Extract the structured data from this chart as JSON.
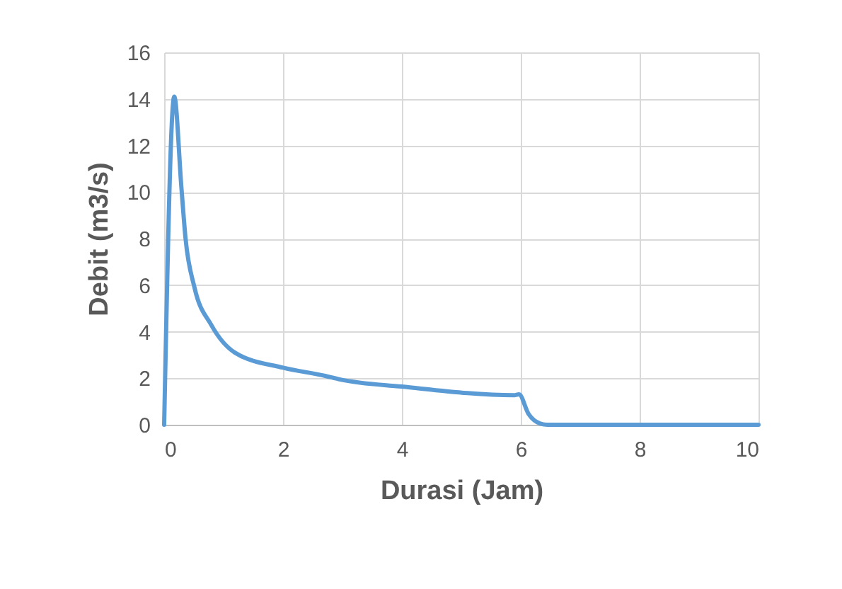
{
  "chart_data": {
    "type": "line",
    "xlabel": "Durasi (Jam)",
    "ylabel": "Debit (m3/s)",
    "xlim": [
      0,
      10
    ],
    "ylim": [
      0,
      16
    ],
    "xticks": [
      0,
      2,
      4,
      6,
      8,
      10
    ],
    "yticks": [
      0,
      2,
      4,
      6,
      8,
      10,
      12,
      14,
      16
    ],
    "grid": true,
    "marker": "none",
    "line_style": "solid",
    "series": [
      {
        "color": "#5b9bd5",
        "x": [
          0,
          0.17,
          0.29,
          0.36,
          0.51,
          0.79,
          1.19,
          2,
          2.71,
          2.95,
          4,
          5.89,
          5.97,
          6.13,
          6.33,
          6.45,
          10
        ],
        "values": [
          0,
          14.1,
          10.2,
          8.0,
          5.9,
          4.3,
          3.1,
          2.45,
          2.1,
          1.95,
          1.64,
          1.27,
          1.31,
          0.47,
          0.05,
          0,
          0
        ]
      }
    ]
  }
}
